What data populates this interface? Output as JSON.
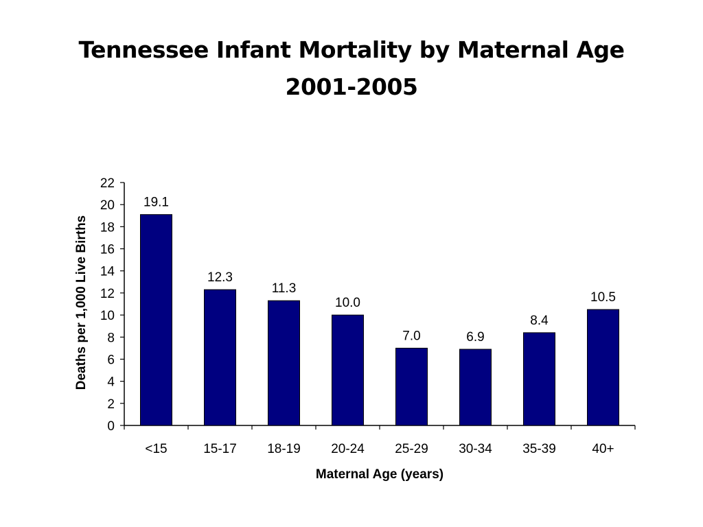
{
  "slide": {
    "title_line1": "Tennessee Infant Mortality by Maternal Age",
    "title_line2": "2001-2005"
  },
  "chart_data": {
    "type": "bar",
    "categories": [
      "<15",
      "15-17",
      "18-19",
      "20-24",
      "25-29",
      "30-34",
      "35-39",
      "40+"
    ],
    "values": [
      19.1,
      12.3,
      11.3,
      10.0,
      7.0,
      6.9,
      8.4,
      10.5
    ],
    "value_labels": [
      "19.1",
      "12.3",
      "11.3",
      "10.0",
      "7.0",
      "6.9",
      "8.4",
      "10.5"
    ],
    "xlabel": "Maternal Age (years)",
    "ylabel": "Deaths per 1,000 Live Births",
    "ylim": [
      0,
      22
    ],
    "yticks": [
      0,
      2,
      4,
      6,
      8,
      10,
      12,
      14,
      16,
      18,
      20,
      22
    ],
    "bar_color": "#000080",
    "grid": false,
    "legend": "none"
  }
}
